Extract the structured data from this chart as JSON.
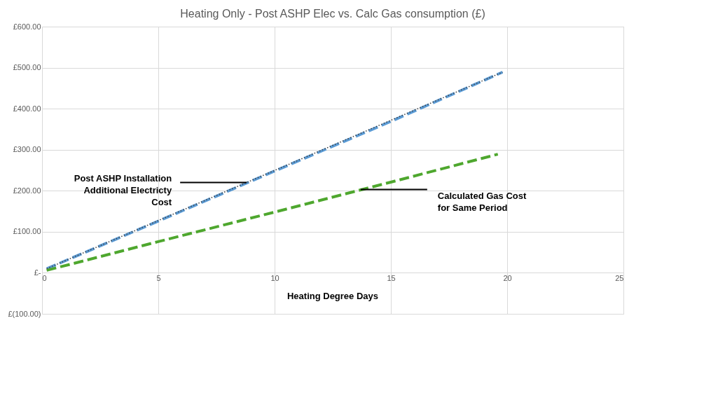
{
  "chart_data": {
    "type": "line",
    "title": "Heating Only - Post ASHP Elec vs. Calc Gas consumption (£)",
    "xlabel": "Heating Degree Days",
    "series": [
      {
        "color": "#5b9bd5",
        "line_style": "dashed",
        "x": [
          0.2,
          5,
          10,
          15,
          19.8
        ],
        "values": [
          10,
          126,
          248,
          369,
          489
        ]
      },
      {
        "color": "#4ea72e",
        "line_style": "dashed",
        "x": [
          0.2,
          5,
          10,
          15,
          19.6
        ],
        "values": [
          6,
          76,
          148,
          221,
          289
        ]
      },
      {
        "color": "#404040",
        "line_style": "dotted",
        "x": [
          0.2,
          19.8
        ],
        "values": [
          10,
          489
        ]
      }
    ],
    "xlim": [
      0,
      25
    ],
    "xticks": [
      0,
      5,
      10,
      15,
      20,
      25
    ],
    "ylim": [
      -100,
      600
    ],
    "yticks": [
      {
        "value": -100,
        "label": "£(100.00)"
      },
      {
        "value": 0,
        "label": "£-"
      },
      {
        "value": 100,
        "label": "£100.00"
      },
      {
        "value": 200,
        "label": "£200.00"
      },
      {
        "value": 300,
        "label": "£300.00"
      },
      {
        "value": 400,
        "label": "£400.00"
      },
      {
        "value": 500,
        "label": "£500.00"
      },
      {
        "value": 600,
        "label": "£600.00"
      }
    ],
    "grid": true,
    "legend": false,
    "marker": "none",
    "annotations": [
      {
        "text": "Post ASHP Installation\nAdditional Electricty\nCost",
        "x": 8.8,
        "y": 220
      },
      {
        "text": "Calculated Gas Cost\nfor Same Period",
        "x": 13.7,
        "y": 203
      }
    ]
  }
}
